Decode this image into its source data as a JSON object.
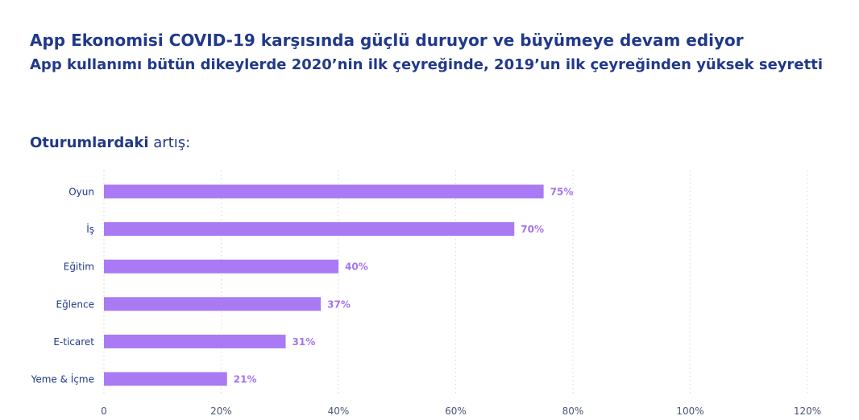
{
  "header": {
    "title": "App Ekonomisi COVID-19 karşısında güçlü duruyor ve büyümeye devam ediyor",
    "subtitle": "App kullanımı bütün dikeylerde 2020’nin ilk çeyreğinde, 2019’un ilk çeyreğinden yüksek seyretti"
  },
  "section": {
    "label_strong": "Oturumlardaki",
    "label_rest": " artış:"
  },
  "colors": {
    "bar": "#a97af3",
    "value_label": "#a374f0",
    "text": "#21398a",
    "grid": "#d9dbe3"
  },
  "chart_data": {
    "type": "bar",
    "orientation": "horizontal",
    "categories": [
      "Oyun",
      "İş",
      "Eğitim",
      "Eğlence",
      "E-ticaret",
      "Yeme & İçme"
    ],
    "values": [
      75,
      70,
      40,
      37,
      31,
      21
    ],
    "value_labels": [
      "75%",
      "70%",
      "40%",
      "37%",
      "31%",
      "21%"
    ],
    "xlim": [
      0,
      120
    ],
    "xticks": [
      0,
      20,
      40,
      60,
      80,
      100,
      120
    ],
    "xtick_labels": [
      "0",
      "20%",
      "40%",
      "60%",
      "80%",
      "100%",
      "120%"
    ],
    "grid": true,
    "grid_style": "dotted"
  }
}
